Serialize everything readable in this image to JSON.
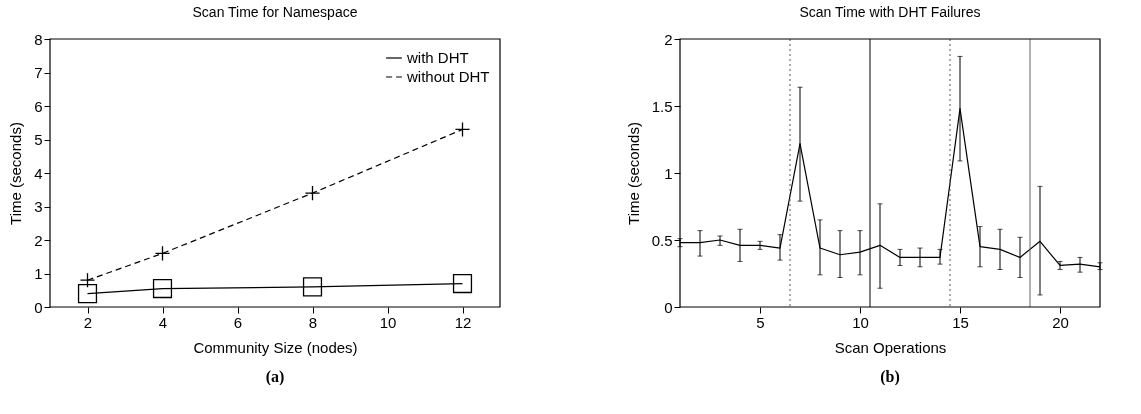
{
  "chart_data": [
    {
      "type": "line",
      "title": "Scan Time for Namespace",
      "xlabel": "Community Size (nodes)",
      "ylabel": "Time (seconds)",
      "x": [
        2,
        4,
        8,
        12
      ],
      "xlim": [
        1,
        13
      ],
      "xticks": [
        2,
        4,
        6,
        8,
        10,
        12
      ],
      "ylim": [
        0,
        8
      ],
      "yticks": [
        0,
        1,
        2,
        3,
        4,
        5,
        6,
        7,
        8
      ],
      "grid": false,
      "legend": "top right",
      "annotations": [
        "(a)"
      ],
      "series": [
        {
          "name": "with DHT",
          "color": "#000000",
          "marker": "square",
          "line_style": "solid",
          "values": [
            0.4,
            0.55,
            0.6,
            0.7
          ]
        },
        {
          "name": "without DHT",
          "color": "#000000",
          "marker": "cross",
          "line_style": "dashed",
          "values": [
            0.8,
            1.6,
            3.4,
            5.3
          ]
        }
      ]
    },
    {
      "type": "line",
      "title": "Scan Time with DHT Failures",
      "xlabel": "Scan Operations",
      "ylabel": "Time (seconds)",
      "x": [
        1,
        2,
        3,
        4,
        5,
        6,
        7,
        8,
        9,
        10,
        11,
        12,
        13,
        14,
        15,
        16,
        17,
        18,
        19,
        20,
        21,
        22
      ],
      "xlim": [
        1,
        22
      ],
      "xticks": [
        5,
        10,
        15,
        20
      ],
      "ylim": [
        0,
        2
      ],
      "yticks": [
        0,
        {
          "value": 0.5,
          "label": "0.5"
        },
        1,
        {
          "value": 1.5,
          "label": "1.5"
        },
        2
      ],
      "grid": false,
      "legend": false,
      "annotations": [
        "(b)"
      ],
      "ref_lines": [
        {
          "axis": "x",
          "value": 6.5,
          "line_style": "dotted",
          "color": "#555555"
        },
        {
          "axis": "x",
          "value": 10.5,
          "line_style": "solid",
          "color": "#000000"
        },
        {
          "axis": "x",
          "value": 14.5,
          "line_style": "dotted",
          "color": "#555555"
        },
        {
          "axis": "x",
          "value": 18.5,
          "line_style": "solid",
          "color": "#666666"
        }
      ],
      "series": [
        {
          "color": "#000000",
          "line_style": "solid",
          "values": [
            0.48,
            0.48,
            0.5,
            0.46,
            0.46,
            0.44,
            1.22,
            0.44,
            0.39,
            0.41,
            0.46,
            0.37,
            0.37,
            0.37,
            1.48,
            0.45,
            0.43,
            0.37,
            0.49,
            0.31,
            0.32,
            0.3
          ],
          "errors": [
            [
              0.45,
              0.51
            ],
            [
              0.38,
              0.57
            ],
            [
              0.46,
              0.53
            ],
            [
              0.34,
              0.58
            ],
            [
              0.43,
              0.49
            ],
            [
              0.35,
              0.54
            ],
            [
              0.79,
              1.64
            ],
            [
              0.24,
              0.65
            ],
            [
              0.22,
              0.57
            ],
            [
              0.24,
              0.57
            ],
            [
              0.14,
              0.77
            ],
            [
              0.31,
              0.43
            ],
            [
              0.3,
              0.44
            ],
            [
              0.32,
              0.43
            ],
            [
              1.09,
              1.87
            ],
            [
              0.3,
              0.6
            ],
            [
              0.28,
              0.58
            ],
            [
              0.22,
              0.52
            ],
            [
              0.09,
              0.9
            ],
            [
              0.28,
              0.34
            ],
            [
              0.26,
              0.37
            ],
            [
              0.28,
              0.33
            ]
          ]
        }
      ]
    }
  ]
}
